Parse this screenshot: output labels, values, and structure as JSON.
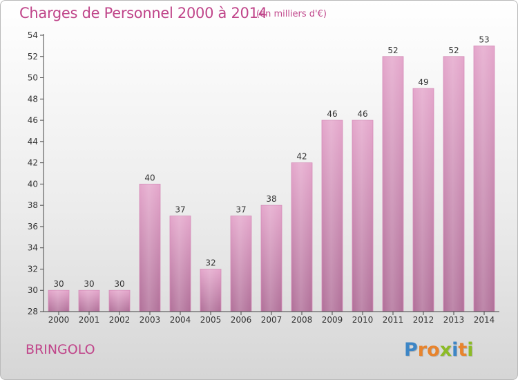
{
  "title": "Charges de Personnel 2000 à 2014",
  "subtitle": "(en milliers d'€)",
  "place_label": "BRINGOLO",
  "logo": {
    "text": "Proxiti",
    "letters": [
      {
        "ch": "P",
        "color": "#3d86c6"
      },
      {
        "ch": "r",
        "color": "#e8842d"
      },
      {
        "ch": "o",
        "color": "#e8842d"
      },
      {
        "ch": "x",
        "color": "#8cbb26"
      },
      {
        "ch": "i",
        "color": "#3d86c6"
      },
      {
        "ch": "t",
        "color": "#e8842d"
      },
      {
        "ch": "i",
        "color": "#8cbb26"
      }
    ]
  },
  "colors": {
    "title": "#c0458a",
    "bar_top": "#e4a6cb",
    "bar_bottom": "#b06f98",
    "axis": "#444444",
    "grid": "#cfcfcf"
  },
  "chart_data": {
    "type": "bar",
    "title": "Charges de Personnel 2000 à 2014",
    "subtitle": "(en milliers d'€)",
    "categories": [
      "2000",
      "2001",
      "2002",
      "2003",
      "2004",
      "2005",
      "2006",
      "2007",
      "2008",
      "2009",
      "2010",
      "2011",
      "2012",
      "2013",
      "2014"
    ],
    "values": [
      30,
      30,
      30,
      40,
      37,
      32,
      37,
      38,
      42,
      46,
      46,
      52,
      49,
      52,
      53
    ],
    "data_labels": [
      "30",
      "30",
      "30",
      "40",
      "37",
      "32",
      "37",
      "38",
      "42",
      "46",
      "46",
      "52",
      "49",
      "52",
      "53"
    ],
    "ylim": [
      28,
      54
    ],
    "yticks": [
      28,
      30,
      32,
      34,
      36,
      38,
      40,
      42,
      44,
      46,
      48,
      50,
      52,
      54
    ],
    "xlabel": "",
    "ylabel": "",
    "grid": false,
    "legend": "none"
  }
}
